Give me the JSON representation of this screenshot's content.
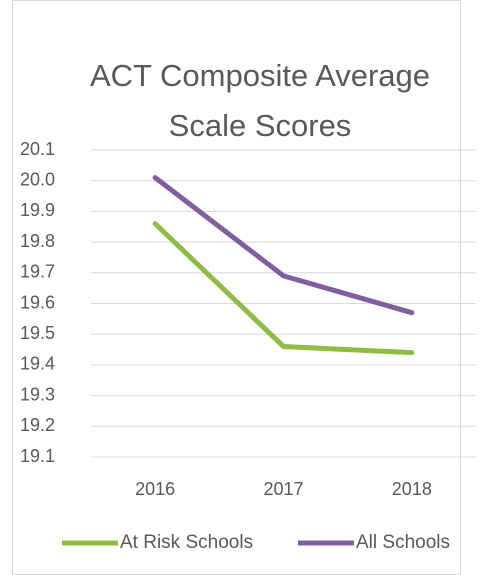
{
  "chart_data": {
    "type": "line",
    "title": [
      "ACT Composite Average",
      "Scale Scores"
    ],
    "categories": [
      "2016",
      "2017",
      "2018"
    ],
    "series": [
      {
        "name": "At Risk Schools",
        "color": "#8fbc45",
        "values": [
          19.86,
          19.46,
          19.44
        ]
      },
      {
        "name": "All Schools",
        "color": "#7f5fa0",
        "values": [
          20.01,
          19.69,
          19.57
        ]
      }
    ],
    "ylim": [
      19.1,
      20.1
    ],
    "yticks": [
      {
        "value": 19.1,
        "label": "19.1"
      },
      {
        "value": 19.2,
        "label": "19.2"
      },
      {
        "value": 19.3,
        "label": "19.3"
      },
      {
        "value": 19.4,
        "label": "19.4"
      },
      {
        "value": 19.5,
        "label": "19.5"
      },
      {
        "value": 19.6,
        "label": "19.6"
      },
      {
        "value": 19.7,
        "label": "19.7"
      },
      {
        "value": 19.8,
        "label": "19.8"
      },
      {
        "value": 19.9,
        "label": "19.9"
      },
      {
        "value": 20.0,
        "label": "20.0"
      },
      {
        "value": 20.1,
        "label": "20.1"
      }
    ],
    "grid": true,
    "legend": "bottom"
  }
}
